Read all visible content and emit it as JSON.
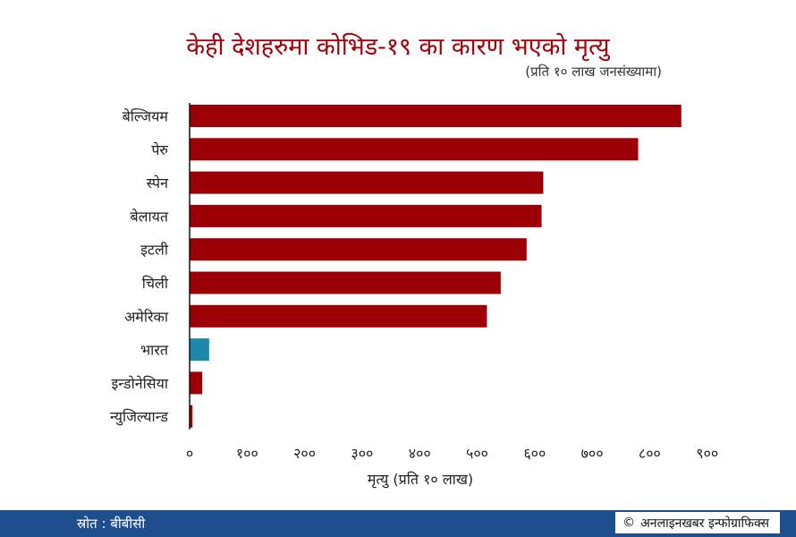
{
  "chart_data": {
    "type": "bar",
    "orientation": "horizontal",
    "title": "केही देशहरुमा कोभिड-१९ का कारण भएको मृत्यु",
    "subtitle": "(प्रति १० लाख जनसंख्यामा)",
    "xlabel": "मृत्यु (प्रति १० लाख)",
    "ylabel": "",
    "xlim": [
      0,
      900
    ],
    "xticks": [
      0,
      100,
      200,
      300,
      400,
      500,
      600,
      700,
      800,
      900
    ],
    "xtick_labels": [
      "०",
      "१००",
      "२००",
      "३००",
      "४००",
      "५००",
      "६००",
      "७००",
      "८००",
      "९००"
    ],
    "categories": [
      "बेल्जियम",
      "पेरु",
      "स्पेन",
      "बेलायत",
      "इटली",
      "चिली",
      "अमेरिका",
      "भारत",
      "इन्डोनेसिया",
      "न्युजिल्यान्ड"
    ],
    "values": [
      855,
      780,
      615,
      612,
      586,
      541,
      517,
      34,
      22,
      5
    ],
    "bar_colors": [
      "#9c0006",
      "#9c0006",
      "#9c0006",
      "#9c0006",
      "#9c0006",
      "#9c0006",
      "#9c0006",
      "#1e88ac",
      "#9c0006",
      "#9c0006"
    ],
    "grid": false,
    "legend": "none"
  },
  "footer": {
    "source": "स्रोत : बीबीसी",
    "credit_symbol": "©",
    "credit": "अनलाइनखबर इन्फोग्राफिक्स"
  },
  "colors": {
    "title": "#a30008",
    "footer_bg": "#1f4e8f"
  }
}
